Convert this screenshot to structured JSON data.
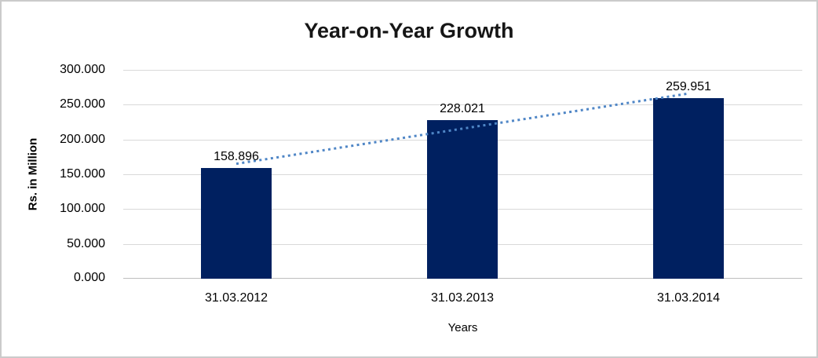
{
  "chart_data": {
    "type": "bar",
    "title": "Year-on-Year Growth",
    "categories": [
      "31.03.2012",
      "31.03.2013",
      "31.03.2014"
    ],
    "values": [
      158.896,
      228.021,
      259.951
    ],
    "value_labels": [
      "158.896",
      "228.021",
      "259.951"
    ],
    "xlabel": "Years",
    "ylabel": "Rs. in Million",
    "ylim": [
      0,
      300
    ],
    "ytick_step": 50,
    "ytick_labels": [
      "0.000",
      "50.000",
      "100.000",
      "150.000",
      "200.000",
      "250.000",
      "300.000"
    ],
    "grid": true,
    "legend": "none",
    "trendline": {
      "type": "linear",
      "style": "dotted",
      "start_value": 165.1,
      "end_value": 266.2
    },
    "colors": {
      "bar": "#002060",
      "trendline": "#4F86C6",
      "gridline": "#d9d9d9",
      "axis_line": "#bfbfbf",
      "text": "#000000",
      "title": "#161616",
      "frame_border": "#cbcbcb"
    }
  }
}
